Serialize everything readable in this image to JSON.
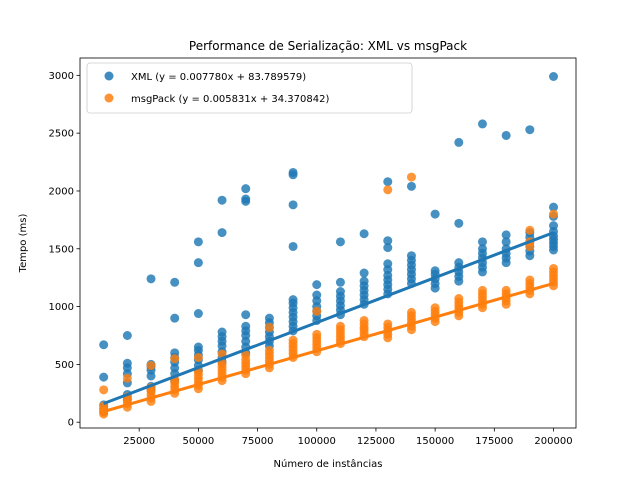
{
  "chart_data": {
    "type": "scatter",
    "title": "Performance de Serialização: XML vs msgPack",
    "xlabel": "Número de instâncias",
    "ylabel": "Tempo (ms)",
    "xlim": [
      0,
      209500
    ],
    "ylim": [
      -50,
      3150
    ],
    "xticks": [
      25000,
      50000,
      75000,
      100000,
      125000,
      150000,
      175000,
      200000
    ],
    "yticks": [
      0,
      500,
      1000,
      1500,
      2000,
      2500,
      3000
    ],
    "legend_position": "upper-left",
    "grid": false,
    "series": [
      {
        "name": "XML (y = 0.007780x + 83.789579)",
        "color": "#1f77b4",
        "fit": {
          "slope": 0.00778,
          "intercept": 83.789579,
          "x_range": [
            10000,
            200000
          ]
        },
        "points": [
          [
            10000,
            670
          ],
          [
            10000,
            390
          ],
          [
            10000,
            150
          ],
          [
            10000,
            120
          ],
          [
            10000,
            90
          ],
          [
            20000,
            750
          ],
          [
            20000,
            510
          ],
          [
            20000,
            470
          ],
          [
            20000,
            420
          ],
          [
            20000,
            340
          ],
          [
            20000,
            240
          ],
          [
            20000,
            200
          ],
          [
            30000,
            1240
          ],
          [
            30000,
            500
          ],
          [
            30000,
            480
          ],
          [
            30000,
            450
          ],
          [
            30000,
            400
          ],
          [
            30000,
            310
          ],
          [
            30000,
            280
          ],
          [
            40000,
            1210
          ],
          [
            40000,
            900
          ],
          [
            40000,
            600
          ],
          [
            40000,
            560
          ],
          [
            40000,
            520
          ],
          [
            40000,
            470
          ],
          [
            40000,
            420
          ],
          [
            40000,
            360
          ],
          [
            50000,
            1560
          ],
          [
            50000,
            1380
          ],
          [
            50000,
            940
          ],
          [
            50000,
            650
          ],
          [
            50000,
            620
          ],
          [
            50000,
            580
          ],
          [
            50000,
            540
          ],
          [
            50000,
            490
          ],
          [
            50000,
            450
          ],
          [
            60000,
            1920
          ],
          [
            60000,
            1640
          ],
          [
            60000,
            780
          ],
          [
            60000,
            740
          ],
          [
            60000,
            700
          ],
          [
            60000,
            660
          ],
          [
            60000,
            610
          ],
          [
            60000,
            560
          ],
          [
            60000,
            520
          ],
          [
            70000,
            2020
          ],
          [
            70000,
            1930
          ],
          [
            70000,
            1910
          ],
          [
            70000,
            930
          ],
          [
            70000,
            830
          ],
          [
            70000,
            790
          ],
          [
            70000,
            750
          ],
          [
            70000,
            700
          ],
          [
            70000,
            650
          ],
          [
            70000,
            600
          ],
          [
            80000,
            900
          ],
          [
            80000,
            860
          ],
          [
            80000,
            820
          ],
          [
            80000,
            780
          ],
          [
            80000,
            740
          ],
          [
            80000,
            700
          ],
          [
            80000,
            660
          ],
          [
            90000,
            2160
          ],
          [
            90000,
            2140
          ],
          [
            90000,
            1880
          ],
          [
            90000,
            1520
          ],
          [
            90000,
            1060
          ],
          [
            90000,
            1030
          ],
          [
            90000,
            990
          ],
          [
            90000,
            950
          ],
          [
            90000,
            910
          ],
          [
            90000,
            870
          ],
          [
            90000,
            830
          ],
          [
            90000,
            790
          ],
          [
            100000,
            1190
          ],
          [
            100000,
            1100
          ],
          [
            100000,
            1050
          ],
          [
            100000,
            1000
          ],
          [
            100000,
            960
          ],
          [
            100000,
            920
          ],
          [
            100000,
            880
          ],
          [
            110000,
            1560
          ],
          [
            110000,
            1210
          ],
          [
            110000,
            1130
          ],
          [
            110000,
            1090
          ],
          [
            110000,
            1050
          ],
          [
            110000,
            1010
          ],
          [
            110000,
            970
          ],
          [
            110000,
            930
          ],
          [
            120000,
            1630
          ],
          [
            120000,
            1290
          ],
          [
            120000,
            1220
          ],
          [
            120000,
            1180
          ],
          [
            120000,
            1140
          ],
          [
            120000,
            1100
          ],
          [
            120000,
            1060
          ],
          [
            120000,
            1020
          ],
          [
            130000,
            2080
          ],
          [
            130000,
            1570
          ],
          [
            130000,
            1510
          ],
          [
            130000,
            1370
          ],
          [
            130000,
            1320
          ],
          [
            130000,
            1270
          ],
          [
            130000,
            1230
          ],
          [
            130000,
            1190
          ],
          [
            130000,
            1150
          ],
          [
            130000,
            1110
          ],
          [
            140000,
            2040
          ],
          [
            140000,
            1440
          ],
          [
            140000,
            1400
          ],
          [
            140000,
            1360
          ],
          [
            140000,
            1320
          ],
          [
            140000,
            1280
          ],
          [
            140000,
            1240
          ],
          [
            140000,
            1200
          ],
          [
            150000,
            1800
          ],
          [
            150000,
            1310
          ],
          [
            150000,
            1280
          ],
          [
            150000,
            1240
          ],
          [
            150000,
            1200
          ],
          [
            150000,
            1160
          ],
          [
            160000,
            2420
          ],
          [
            160000,
            1720
          ],
          [
            160000,
            1380
          ],
          [
            160000,
            1340
          ],
          [
            160000,
            1300
          ],
          [
            160000,
            1260
          ],
          [
            160000,
            1220
          ],
          [
            170000,
            2580
          ],
          [
            170000,
            1560
          ],
          [
            170000,
            1500
          ],
          [
            170000,
            1460
          ],
          [
            170000,
            1420
          ],
          [
            170000,
            1380
          ],
          [
            170000,
            1340
          ],
          [
            170000,
            1300
          ],
          [
            180000,
            2480
          ],
          [
            180000,
            1620
          ],
          [
            180000,
            1560
          ],
          [
            180000,
            1500
          ],
          [
            180000,
            1460
          ],
          [
            180000,
            1420
          ],
          [
            180000,
            1380
          ],
          [
            190000,
            2530
          ],
          [
            190000,
            1640
          ],
          [
            190000,
            1600
          ],
          [
            190000,
            1560
          ],
          [
            190000,
            1520
          ],
          [
            190000,
            1480
          ],
          [
            190000,
            1440
          ],
          [
            200000,
            2990
          ],
          [
            200000,
            1860
          ],
          [
            200000,
            1780
          ],
          [
            200000,
            1700
          ],
          [
            200000,
            1650
          ],
          [
            200000,
            1610
          ],
          [
            200000,
            1580
          ],
          [
            200000,
            1550
          ],
          [
            200000,
            1520
          ],
          [
            200000,
            1490
          ]
        ]
      },
      {
        "name": "msgPack (y = 0.005831x + 34.370842)",
        "color": "#ff7f0e",
        "fit": {
          "slope": 0.005831,
          "intercept": 34.370842,
          "x_range": [
            10000,
            200000
          ]
        },
        "points": [
          [
            10000,
            280
          ],
          [
            10000,
            140
          ],
          [
            10000,
            110
          ],
          [
            10000,
            90
          ],
          [
            10000,
            70
          ],
          [
            20000,
            380
          ],
          [
            20000,
            220
          ],
          [
            20000,
            190
          ],
          [
            20000,
            160
          ],
          [
            20000,
            130
          ],
          [
            30000,
            490
          ],
          [
            30000,
            300
          ],
          [
            30000,
            270
          ],
          [
            30000,
            240
          ],
          [
            30000,
            210
          ],
          [
            30000,
            180
          ],
          [
            40000,
            550
          ],
          [
            40000,
            370
          ],
          [
            40000,
            340
          ],
          [
            40000,
            310
          ],
          [
            40000,
            280
          ],
          [
            40000,
            250
          ],
          [
            50000,
            560
          ],
          [
            50000,
            440
          ],
          [
            50000,
            410
          ],
          [
            50000,
            380
          ],
          [
            50000,
            350
          ],
          [
            50000,
            320
          ],
          [
            50000,
            290
          ],
          [
            60000,
            590
          ],
          [
            60000,
            510
          ],
          [
            60000,
            480
          ],
          [
            60000,
            450
          ],
          [
            60000,
            420
          ],
          [
            60000,
            390
          ],
          [
            60000,
            360
          ],
          [
            70000,
            580
          ],
          [
            70000,
            540
          ],
          [
            70000,
            510
          ],
          [
            70000,
            480
          ],
          [
            70000,
            450
          ],
          [
            70000,
            420
          ],
          [
            80000,
            820
          ],
          [
            80000,
            620
          ],
          [
            80000,
            590
          ],
          [
            80000,
            560
          ],
          [
            80000,
            530
          ],
          [
            80000,
            500
          ],
          [
            80000,
            470
          ],
          [
            90000,
            710
          ],
          [
            90000,
            680
          ],
          [
            90000,
            650
          ],
          [
            90000,
            620
          ],
          [
            90000,
            590
          ],
          [
            90000,
            560
          ],
          [
            100000,
            960
          ],
          [
            100000,
            760
          ],
          [
            100000,
            730
          ],
          [
            100000,
            700
          ],
          [
            100000,
            670
          ],
          [
            100000,
            640
          ],
          [
            100000,
            610
          ],
          [
            110000,
            830
          ],
          [
            110000,
            800
          ],
          [
            110000,
            770
          ],
          [
            110000,
            740
          ],
          [
            110000,
            710
          ],
          [
            110000,
            680
          ],
          [
            120000,
            820
          ],
          [
            120000,
            880
          ],
          [
            120000,
            850
          ],
          [
            120000,
            800
          ],
          [
            120000,
            770
          ],
          [
            120000,
            740
          ],
          [
            130000,
            2010
          ],
          [
            130000,
            850
          ],
          [
            130000,
            820
          ],
          [
            130000,
            790
          ],
          [
            130000,
            760
          ],
          [
            130000,
            730
          ],
          [
            140000,
            2120
          ],
          [
            140000,
            950
          ],
          [
            140000,
            920
          ],
          [
            140000,
            890
          ],
          [
            140000,
            860
          ],
          [
            140000,
            830
          ],
          [
            140000,
            800
          ],
          [
            150000,
            990
          ],
          [
            150000,
            960
          ],
          [
            150000,
            930
          ],
          [
            150000,
            900
          ],
          [
            150000,
            870
          ],
          [
            160000,
            1070
          ],
          [
            160000,
            1040
          ],
          [
            160000,
            1010
          ],
          [
            160000,
            980
          ],
          [
            160000,
            950
          ],
          [
            160000,
            920
          ],
          [
            170000,
            1140
          ],
          [
            170000,
            1110
          ],
          [
            170000,
            1080
          ],
          [
            170000,
            1050
          ],
          [
            170000,
            1020
          ],
          [
            170000,
            990
          ],
          [
            180000,
            1140
          ],
          [
            180000,
            1110
          ],
          [
            180000,
            1080
          ],
          [
            180000,
            1050
          ],
          [
            180000,
            1020
          ],
          [
            190000,
            1660
          ],
          [
            190000,
            1560
          ],
          [
            190000,
            1520
          ],
          [
            190000,
            1230
          ],
          [
            190000,
            1200
          ],
          [
            190000,
            1170
          ],
          [
            190000,
            1140
          ],
          [
            190000,
            1110
          ],
          [
            200000,
            1800
          ],
          [
            200000,
            1330
          ],
          [
            200000,
            1300
          ],
          [
            200000,
            1270
          ],
          [
            200000,
            1240
          ],
          [
            200000,
            1210
          ],
          [
            200000,
            1180
          ]
        ]
      }
    ]
  }
}
